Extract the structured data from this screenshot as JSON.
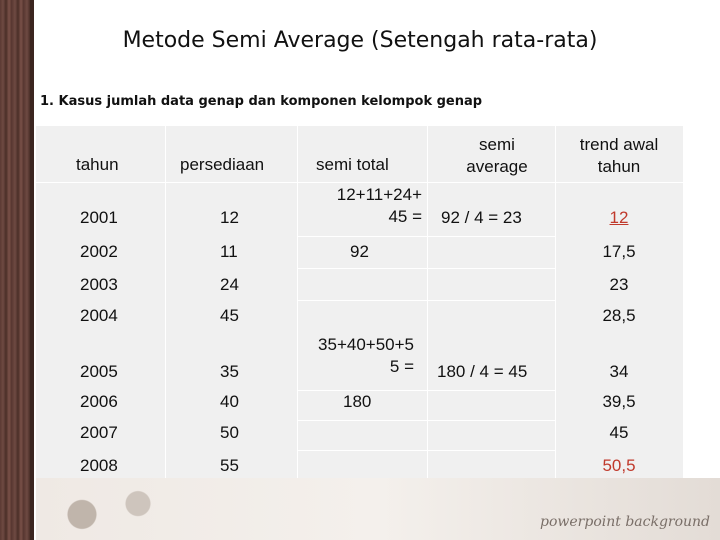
{
  "title": "Metode Semi Average (Setengah rata-rata)",
  "subtitle": "1. Kasus jumlah data genap dan komponen kelompok genap",
  "headers": {
    "tahun": "tahun",
    "persediaan": "persediaan",
    "semi_total": "semi total",
    "semi_average": "semi\naverage",
    "trend_awal": "trend awal\ntahun"
  },
  "rows": [
    {
      "tahun": "2001",
      "persediaan": "12",
      "trend": "12"
    },
    {
      "tahun": "2002",
      "persediaan": "11",
      "trend": "17,5"
    },
    {
      "tahun": "2003",
      "persediaan": "24",
      "trend": "23"
    },
    {
      "tahun": "2004",
      "persediaan": "45",
      "trend": "28,5"
    },
    {
      "tahun": "2005",
      "persediaan": "35",
      "trend": "34"
    },
    {
      "tahun": "2006",
      "persediaan": "40",
      "trend": "39,5"
    },
    {
      "tahun": "2007",
      "persediaan": "50",
      "trend": "45"
    },
    {
      "tahun": "2008",
      "persediaan": "55",
      "trend": "50,5"
    }
  ],
  "groups": [
    {
      "semi_total_expr": "12+11+24+\n45 =",
      "semi_total_value": "92",
      "semi_average": "92 / 4 = 23"
    },
    {
      "semi_total_expr": "35+40+50+5\n5 =",
      "semi_total_value": "180",
      "semi_average": "180 / 4 = 45"
    }
  ],
  "footer_text": "powerpoint background",
  "colors": {
    "highlight": "#c0392b",
    "table_bg": "#f0f0f0"
  }
}
